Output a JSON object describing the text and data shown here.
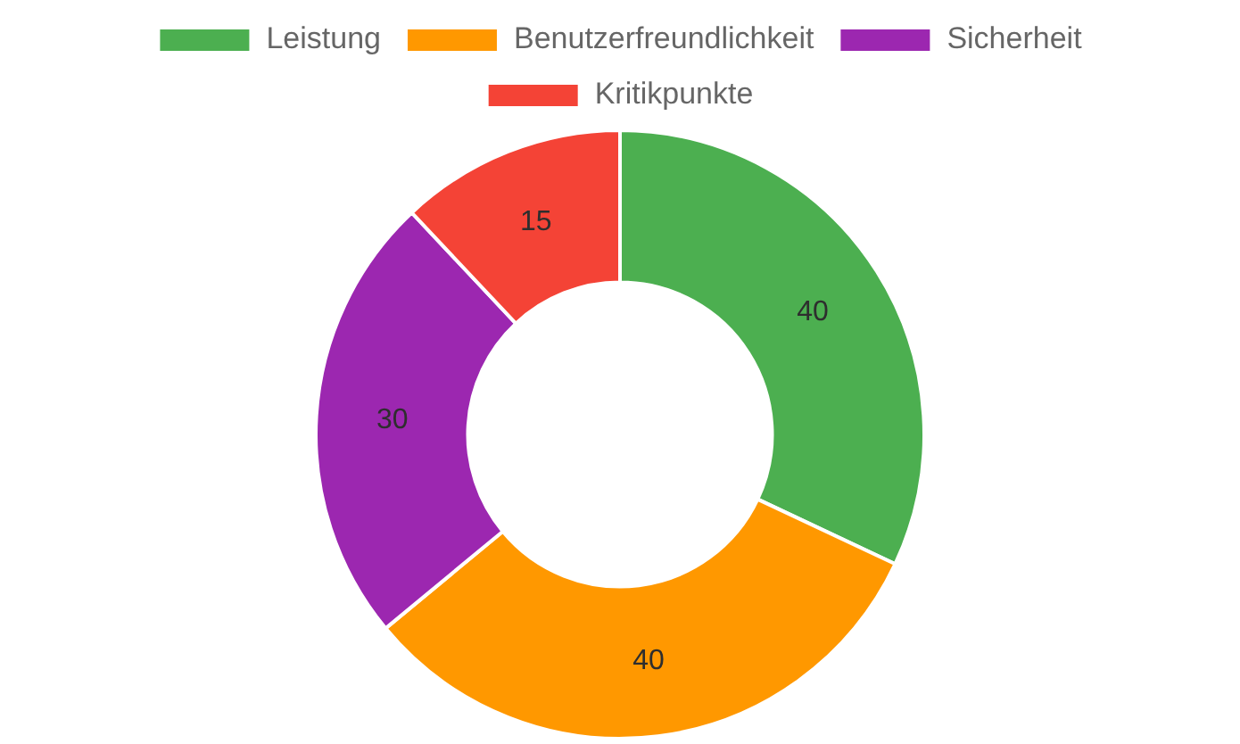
{
  "chart_data": {
    "type": "donut",
    "categories": [
      "Leistung",
      "Benutzerfreundlichkeit",
      "Sicherheit",
      "Kritikpunkte"
    ],
    "values": [
      40,
      40,
      30,
      15
    ],
    "colors": [
      "#4caf50",
      "#ff9800",
      "#9c27b0",
      "#f44336"
    ],
    "legend": "top",
    "data_labels": true
  }
}
